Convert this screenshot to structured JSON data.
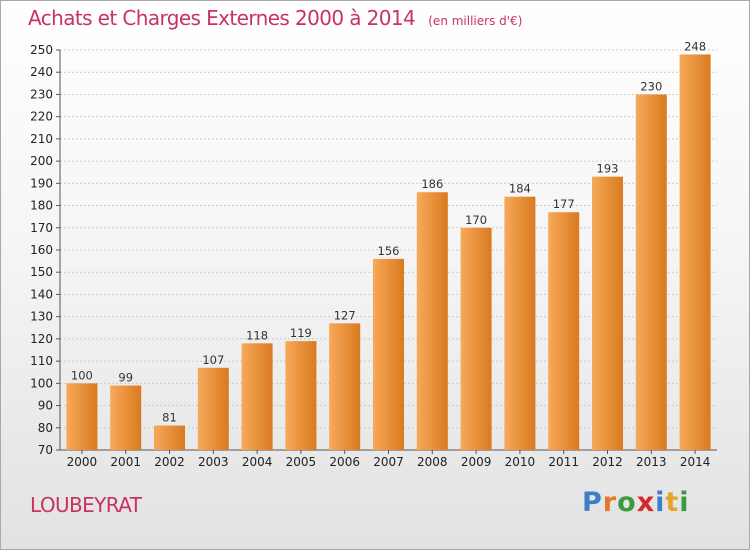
{
  "header": {
    "title": "Achats et Charges Externes 2000 à 2014",
    "unit": "(en milliers d'€)"
  },
  "footer": {
    "place": "LOUBEYRAT",
    "logo": {
      "letters": [
        {
          "char": "P",
          "color": "#3d7fc6"
        },
        {
          "char": "r",
          "color": "#e07a28"
        },
        {
          "char": "o",
          "color": "#3a9a3e"
        },
        {
          "char": "x",
          "color": "#d6282b"
        },
        {
          "char": "i",
          "color": "#3d7fc6"
        },
        {
          "char": "t",
          "color": "#e5a52a"
        },
        {
          "char": "i",
          "color": "#3a9a3e"
        }
      ]
    }
  },
  "chart_data": {
    "type": "bar",
    "title": "Achats et Charges Externes 2000 à 2014",
    "subtitle": "(en milliers d'€)",
    "categories": [
      "2000",
      "2001",
      "2002",
      "2003",
      "2004",
      "2005",
      "2006",
      "2007",
      "2008",
      "2009",
      "2010",
      "2011",
      "2012",
      "2013",
      "2014"
    ],
    "values": [
      100,
      99,
      81,
      107,
      118,
      119,
      127,
      156,
      186,
      170,
      184,
      177,
      193,
      230,
      248
    ],
    "data_labels": [
      "100",
      "99",
      "81",
      "107",
      "118",
      "119",
      "127",
      "156",
      "186",
      "170",
      "184",
      "177",
      "193",
      "230",
      "248"
    ],
    "ylim": [
      70,
      250
    ],
    "yticks": [
      70,
      80,
      90,
      100,
      110,
      120,
      130,
      140,
      150,
      160,
      170,
      180,
      190,
      200,
      210,
      220,
      230,
      240,
      250
    ],
    "grid": true,
    "colors": {
      "bar_light": "#f7a95a",
      "bar_dark": "#d97a1e",
      "grid": "#cccccc",
      "axis": "#555555"
    }
  }
}
